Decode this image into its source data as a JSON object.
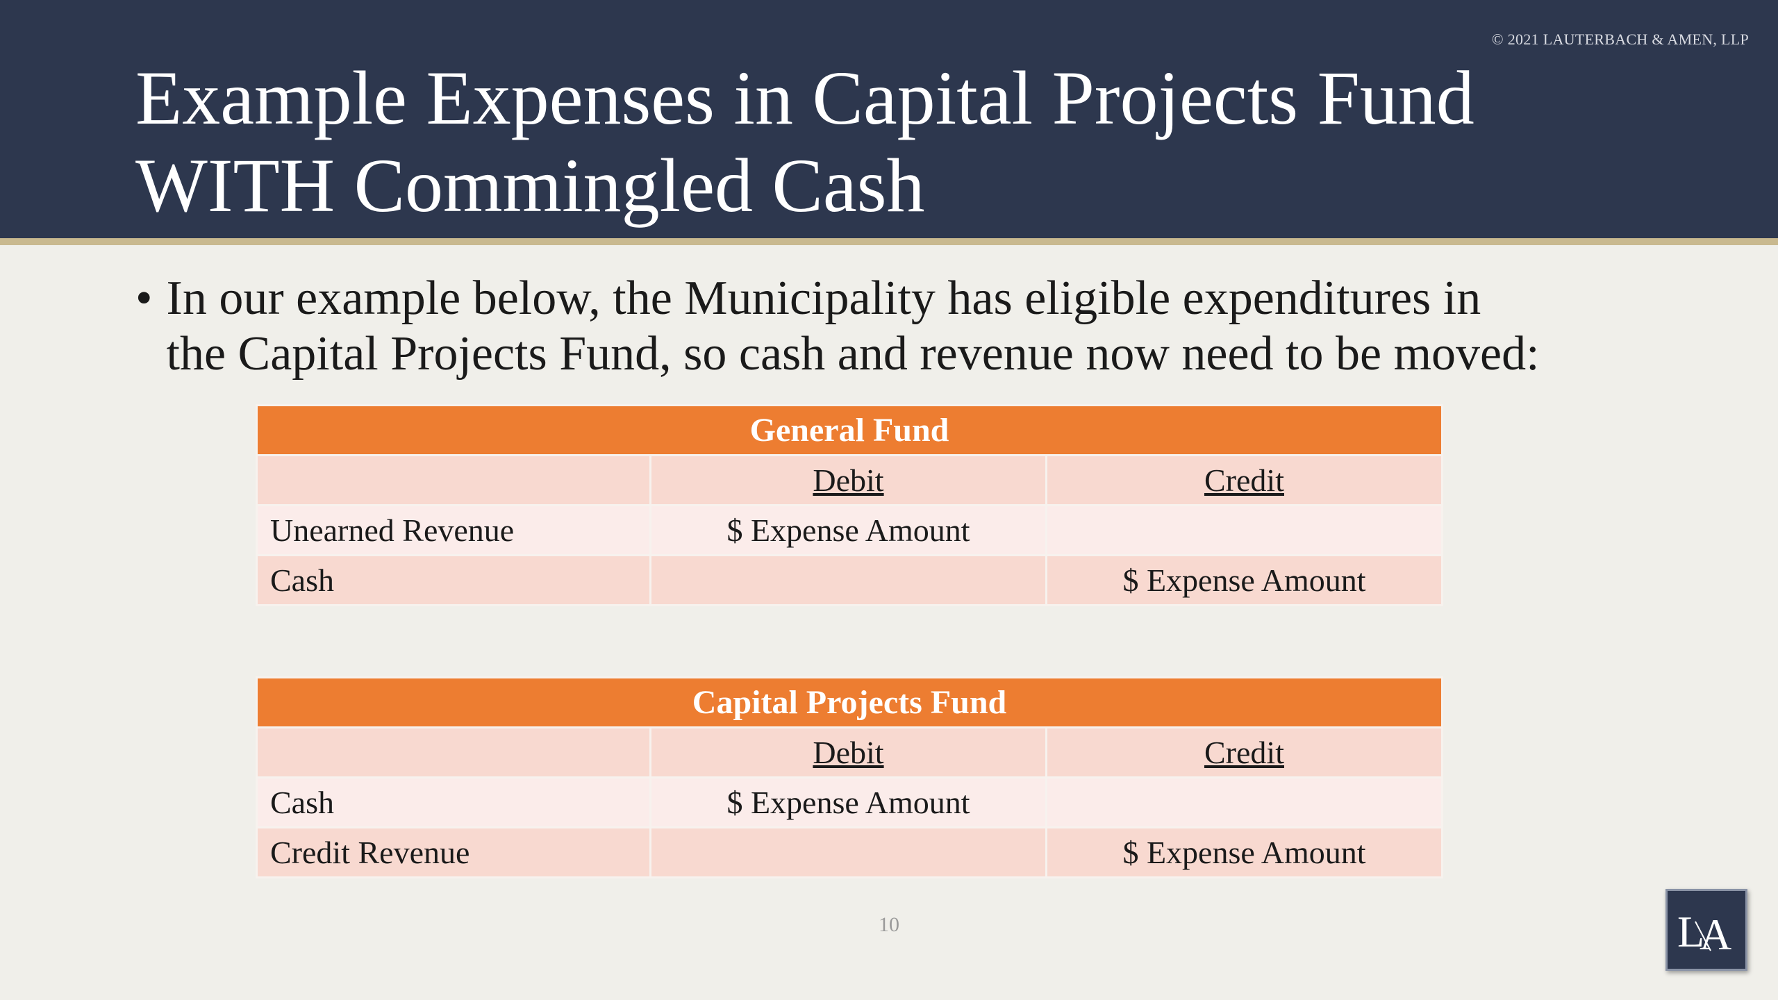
{
  "header": {
    "copyright": "© 2021 LAUTERBACH & AMEN, LLP",
    "title_line1": "Example Expenses in Capital Projects Fund",
    "title_line2": "WITH Commingled Cash"
  },
  "bullet": {
    "marker": "•",
    "line1": "In our example below, the Municipality has eligible expenditures in",
    "line2": "the Capital Projects Fund, so cash and revenue now need to be moved:"
  },
  "general_fund": {
    "title": "General Fund",
    "columns": [
      "",
      "Debit",
      "Credit"
    ],
    "rows": [
      [
        "Unearned Revenue",
        "$ Expense Amount",
        ""
      ],
      [
        "Cash",
        "",
        "$ Expense Amount"
      ]
    ]
  },
  "capital_projects_fund": {
    "title": "Capital Projects Fund",
    "columns": [
      "",
      "Debit",
      "Credit"
    ],
    "rows": [
      [
        "Cash",
        "$ Expense Amount",
        ""
      ],
      [
        "Credit Revenue",
        "",
        "$ Expense Amount"
      ]
    ]
  },
  "footer": {
    "page_number": "10",
    "logo_text": "LA"
  },
  "colors": {
    "header_bg": "#2d374e",
    "accent_rule": "#c9b98f",
    "table_header": "#ed7d31",
    "row_dark": "#f8d9d0",
    "row_light": "#fbecea",
    "slide_bg": "#f0efea"
  }
}
